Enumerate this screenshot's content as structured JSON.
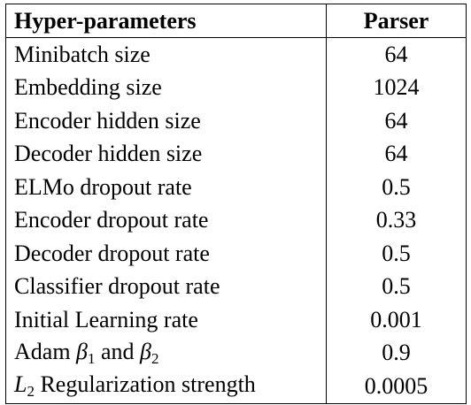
{
  "table": {
    "headers": [
      "Hyper-parameters",
      "Parser"
    ],
    "rows": [
      {
        "name": "Minibatch size",
        "value": "64"
      },
      {
        "name": "Embedding size",
        "value": "1024"
      },
      {
        "name": "Encoder hidden size",
        "value": "64"
      },
      {
        "name": "Decoder hidden size",
        "value": "64"
      },
      {
        "name": "ELMo dropout rate",
        "value": "0.5"
      },
      {
        "name": "Encoder dropout rate",
        "value": "0.33"
      },
      {
        "name": "Decoder dropout rate",
        "value": "0.5"
      },
      {
        "name": "Classifier dropout rate",
        "value": "0.5"
      },
      {
        "name": "Initial Learning rate",
        "value": "0.001"
      },
      {
        "name": "Adam β1 and β2",
        "name_parts": {
          "prefix": "Adam ",
          "sym1": "β",
          "sub1": "1",
          "mid": " and ",
          "sym2": "β",
          "sub2": "2"
        },
        "value": "0.9"
      },
      {
        "name": "L2 Regularization strength",
        "name_parts": {
          "sym": "L",
          "sub": "2",
          "suffix": " Regularization strength"
        },
        "value": "0.0005"
      }
    ]
  }
}
